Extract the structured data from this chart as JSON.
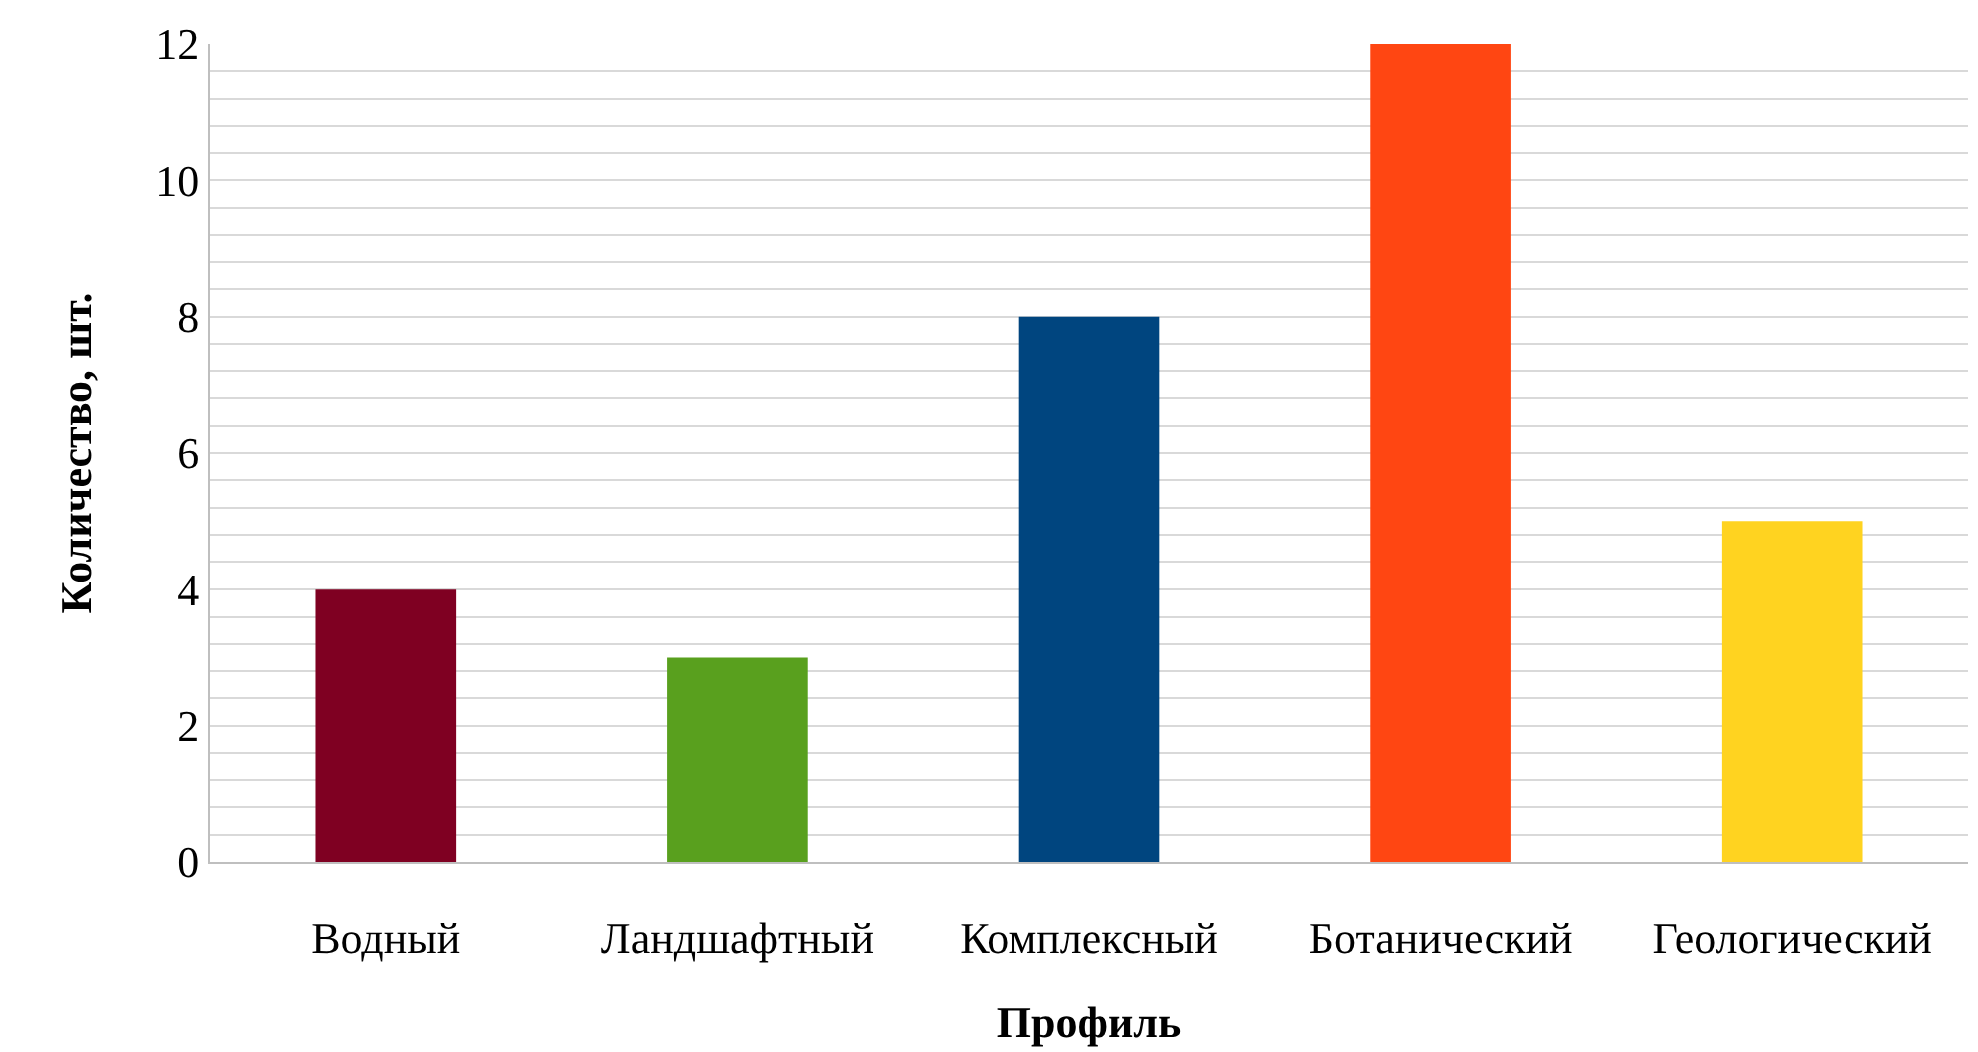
{
  "chart_data": {
    "type": "bar",
    "xlabel": "Профиль",
    "ylabel": "Количество, шт.",
    "categories": [
      "Водный",
      "Ландшафтный",
      "Комплексный",
      "Ботанический",
      "Геологический"
    ],
    "values": [
      4,
      3,
      8,
      12,
      5
    ],
    "colors": [
      "#7f0022",
      "#59a01e",
      "#00457f",
      "#ff4612",
      "#ffd320"
    ],
    "ylim": [
      0,
      12
    ],
    "yticks": [
      0,
      {
        "value": 0.4,
        "label": null
      },
      {
        "value": 0.8,
        "label": null
      },
      {
        "value": 1.2,
        "label": null
      },
      {
        "value": 1.6,
        "label": null
      },
      2,
      {
        "value": 2.4,
        "label": null
      },
      {
        "value": 2.8,
        "label": null
      },
      {
        "value": 3.2,
        "label": null
      },
      {
        "value": 3.6,
        "label": null
      },
      4,
      {
        "value": 4.4,
        "label": null
      },
      {
        "value": 4.8,
        "label": null
      },
      {
        "value": 5.2,
        "label": null
      },
      {
        "value": 5.6,
        "label": null
      },
      6,
      {
        "value": 6.4,
        "label": null
      },
      {
        "value": 6.8,
        "label": null
      },
      {
        "value": 7.2,
        "label": null
      },
      {
        "value": 7.6,
        "label": null
      },
      8,
      {
        "value": 8.4,
        "label": null
      },
      {
        "value": 8.8,
        "label": null
      },
      {
        "value": 9.2,
        "label": null
      },
      {
        "value": 9.6,
        "label": null
      },
      10,
      {
        "value": 10.4,
        "label": null
      },
      {
        "value": 10.8,
        "label": null
      },
      {
        "value": 11.2,
        "label": null
      },
      {
        "value": 11.6,
        "label": null
      },
      12
    ],
    "grid": "y"
  }
}
